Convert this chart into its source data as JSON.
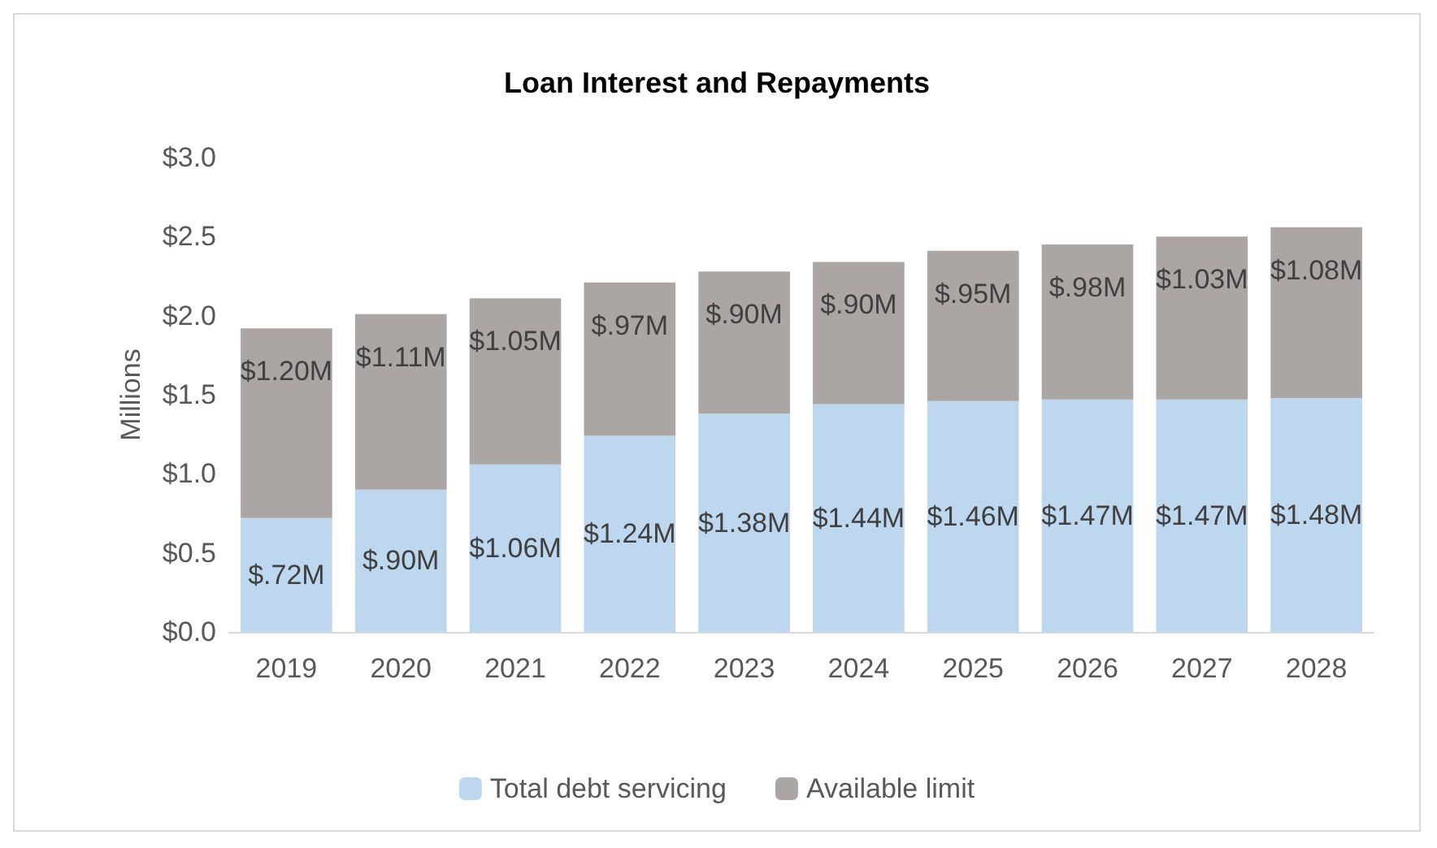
{
  "chart_data": {
    "type": "bar",
    "title": "Loan Interest and Repayments",
    "ylabel": "Millions",
    "categories": [
      "2019",
      "2020",
      "2021",
      "2022",
      "2023",
      "2024",
      "2025",
      "2026",
      "2027",
      "2028"
    ],
    "stacked": true,
    "series": [
      {
        "name": "Total debt servicing",
        "color": "#bdd7ee",
        "values": [
          0.72,
          0.9,
          1.06,
          1.24,
          1.38,
          1.44,
          1.46,
          1.47,
          1.47,
          1.48
        ],
        "value_labels": [
          "$.72M",
          "$.90M",
          "$1.06M",
          "$1.24M",
          "$1.38M",
          "$1.44M",
          "$1.46M",
          "$1.47M",
          "$1.47M",
          "$1.48M"
        ]
      },
      {
        "name": "Available limit",
        "color": "#aba6a4",
        "values": [
          1.2,
          1.11,
          1.05,
          0.97,
          0.9,
          0.9,
          0.95,
          0.98,
          1.03,
          1.08
        ],
        "value_labels": [
          "$1.20M",
          "$1.11M",
          "$1.05M",
          "$.97M",
          "$.90M",
          "$.90M",
          "$.95M",
          "$.98M",
          "$1.03M",
          "$1.08M"
        ]
      }
    ],
    "ylim": [
      0,
      3
    ],
    "yticks": [
      {
        "value": 0,
        "label": "$0.0"
      },
      {
        "value": 0.5,
        "label": "$0.5"
      },
      {
        "value": 1,
        "label": "$1.0"
      },
      {
        "value": 1.5,
        "label": "$1.5"
      },
      {
        "value": 2,
        "label": "$2.0"
      },
      {
        "value": 2.5,
        "label": "$2.5"
      },
      {
        "value": 3,
        "label": "$3.0"
      }
    ],
    "grid": false,
    "legend": "bottom"
  }
}
